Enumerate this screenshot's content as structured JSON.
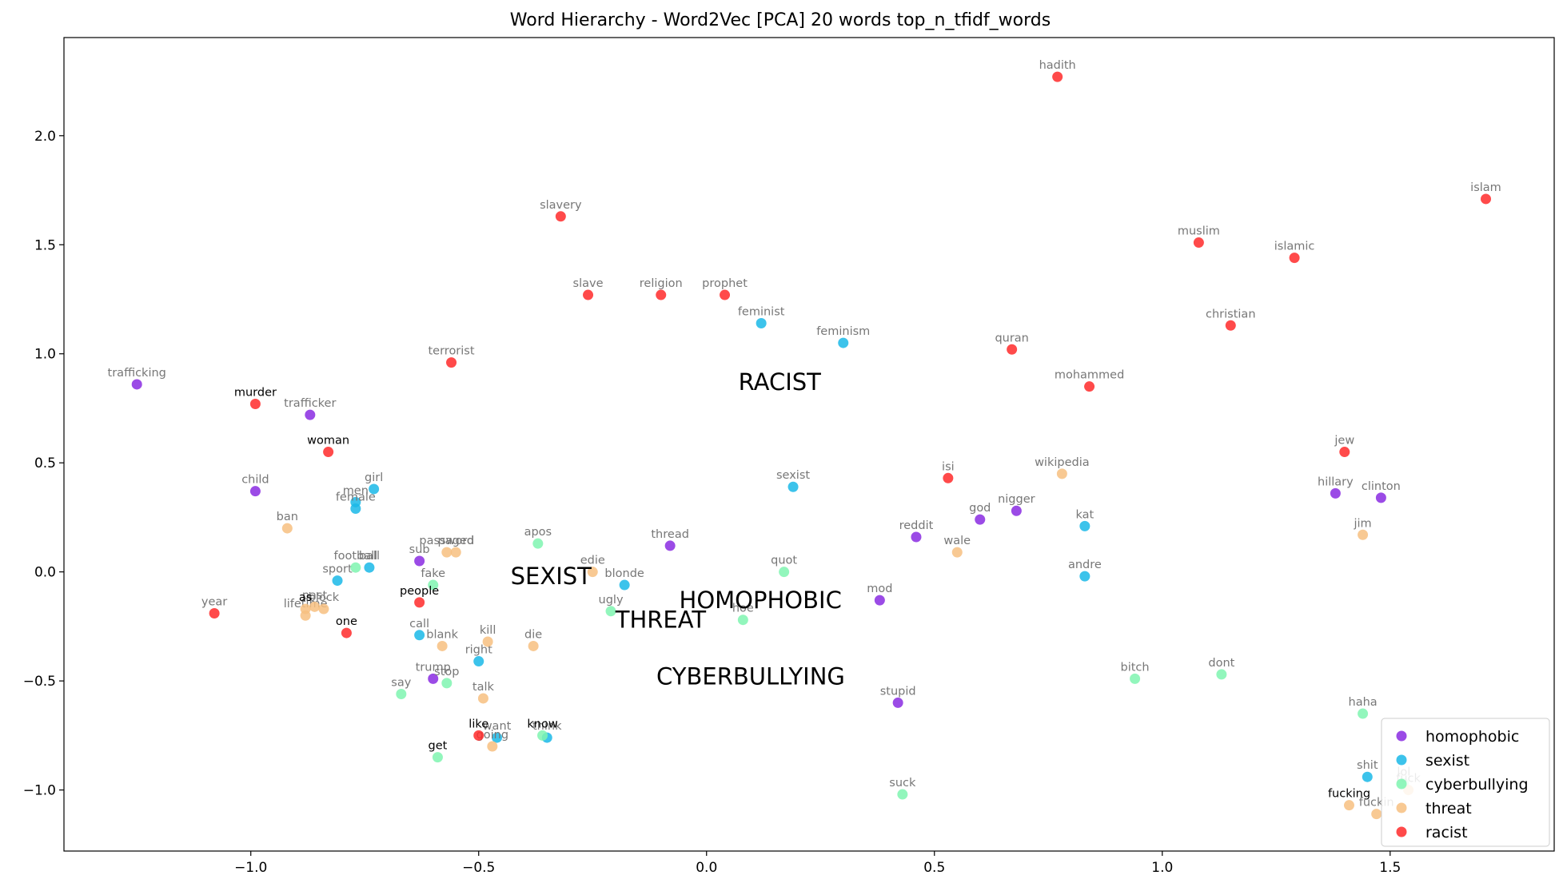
{
  "chart_data": {
    "type": "scatter",
    "title": "Word Hierarchy - Word2Vec [PCA] 20 words top_n_tfidf_words",
    "xlabel": "",
    "ylabel": "",
    "xlim": [
      -1.41,
      1.86
    ],
    "ylim": [
      -1.28,
      2.45
    ],
    "xticks": [
      "−1.0",
      "−0.5",
      "0.0",
      "0.5",
      "1.0",
      "1.5"
    ],
    "xtick_values": [
      -1.0,
      -0.5,
      0.0,
      0.5,
      1.0,
      1.5
    ],
    "yticks": [
      "−1.0",
      "−0.5",
      "0.0",
      "0.5",
      "1.0",
      "1.5",
      "2.0"
    ],
    "ytick_values": [
      -1.0,
      -0.5,
      0.0,
      0.5,
      1.0,
      1.5,
      2.0
    ],
    "grid": false,
    "legend_position": "lower-right",
    "series": [
      {
        "name": "homophobic",
        "color": "#8a2be2",
        "points": [
          {
            "label": "trafficking",
            "x": -1.25,
            "y": 0.86
          },
          {
            "label": "trafficker",
            "x": -0.87,
            "y": 0.72
          },
          {
            "label": "child",
            "x": -0.99,
            "y": 0.37
          },
          {
            "label": "sub",
            "x": -0.63,
            "y": 0.05
          },
          {
            "label": "thread",
            "x": -0.08,
            "y": 0.12
          },
          {
            "label": "reddit",
            "x": 0.46,
            "y": 0.16
          },
          {
            "label": "god",
            "x": 0.6,
            "y": 0.24
          },
          {
            "label": "nigger",
            "x": 0.68,
            "y": 0.28
          },
          {
            "label": "mod",
            "x": 0.38,
            "y": -0.13
          },
          {
            "label": "trump",
            "x": -0.6,
            "y": -0.49
          },
          {
            "label": "stupid",
            "x": 0.42,
            "y": -0.6
          },
          {
            "label": "hillary",
            "x": 1.38,
            "y": 0.36
          },
          {
            "label": "clinton",
            "x": 1.48,
            "y": 0.34
          }
        ]
      },
      {
        "name": "sexist",
        "color": "#1ab8e8",
        "points": [
          {
            "label": "feminist",
            "x": 0.12,
            "y": 1.14
          },
          {
            "label": "feminism",
            "x": 0.3,
            "y": 1.05
          },
          {
            "label": "girl",
            "x": -0.73,
            "y": 0.38
          },
          {
            "label": "men",
            "x": -0.77,
            "y": 0.32
          },
          {
            "label": "female",
            "x": -0.77,
            "y": 0.29
          },
          {
            "label": "sexist",
            "x": 0.19,
            "y": 0.39
          },
          {
            "label": "kat",
            "x": 0.83,
            "y": 0.21
          },
          {
            "label": "ball",
            "x": -0.74,
            "y": 0.02
          },
          {
            "label": "sport",
            "x": -0.81,
            "y": -0.04
          },
          {
            "label": "blonde",
            "x": -0.18,
            "y": -0.06
          },
          {
            "label": "andre",
            "x": 0.83,
            "y": -0.02
          },
          {
            "label": "call",
            "x": -0.63,
            "y": -0.29
          },
          {
            "label": "right",
            "x": -0.5,
            "y": -0.41
          },
          {
            "label": "want",
            "x": -0.46,
            "y": -0.76
          },
          {
            "label": "think",
            "x": -0.35,
            "y": -0.76
          },
          {
            "label": "shit",
            "x": 1.45,
            "y": -0.94
          }
        ]
      },
      {
        "name": "cyberbullying",
        "color": "#7ff5b0",
        "points": [
          {
            "label": "apos",
            "x": -0.37,
            "y": 0.13
          },
          {
            "label": "football",
            "x": -0.77,
            "y": 0.02
          },
          {
            "label": "fake",
            "x": -0.6,
            "y": -0.06
          },
          {
            "label": "quot",
            "x": 0.17,
            "y": 0.0
          },
          {
            "label": "ugly",
            "x": -0.21,
            "y": -0.18
          },
          {
            "label": "hoe",
            "x": 0.08,
            "y": -0.22
          },
          {
            "label": "stop",
            "x": -0.57,
            "y": -0.51
          },
          {
            "label": "say",
            "x": -0.67,
            "y": -0.56
          },
          {
            "label": "know",
            "x": -0.36,
            "y": -0.75
          },
          {
            "label": "get",
            "x": -0.59,
            "y": -0.85
          },
          {
            "label": "bitch",
            "x": 0.94,
            "y": -0.49
          },
          {
            "label": "dont",
            "x": 1.13,
            "y": -0.47
          },
          {
            "label": "haha",
            "x": 1.44,
            "y": -0.65
          },
          {
            "label": "suck",
            "x": 0.43,
            "y": -1.02
          },
          {
            "label": "lol",
            "x": 1.53,
            "y": -0.97
          }
        ]
      },
      {
        "name": "threat",
        "color": "#f7bf80",
        "points": [
          {
            "label": "ban",
            "x": -0.92,
            "y": 0.2
          },
          {
            "label": "password",
            "x": -0.57,
            "y": 0.09
          },
          {
            "label": "paged",
            "x": -0.55,
            "y": 0.09
          },
          {
            "label": "edie",
            "x": -0.25,
            "y": 0.0
          },
          {
            "label": "wikipedia",
            "x": 0.78,
            "y": 0.45
          },
          {
            "label": "wale",
            "x": 0.55,
            "y": 0.09
          },
          {
            "label": "jim",
            "x": 1.44,
            "y": 0.17
          },
          {
            "label": "lifetime",
            "x": -0.88,
            "y": -0.2
          },
          {
            "label": "past",
            "x": -0.86,
            "y": -0.16
          },
          {
            "label": "block",
            "x": -0.84,
            "y": -0.17
          },
          {
            "label": "as",
            "x": -0.88,
            "y": -0.17
          },
          {
            "label": "blank",
            "x": -0.58,
            "y": -0.34
          },
          {
            "label": "kill",
            "x": -0.48,
            "y": -0.32
          },
          {
            "label": "die",
            "x": -0.38,
            "y": -0.34
          },
          {
            "label": "talk",
            "x": -0.49,
            "y": -0.58
          },
          {
            "label": "going",
            "x": -0.47,
            "y": -0.8
          },
          {
            "label": "fucking",
            "x": 1.41,
            "y": -1.07
          },
          {
            "label": "fuckin",
            "x": 1.47,
            "y": -1.11
          },
          {
            "label": "fuck",
            "x": 1.54,
            "y": -1.0
          }
        ]
      },
      {
        "name": "racist",
        "color": "#ff2a2a",
        "points": [
          {
            "label": "hadith",
            "x": 0.77,
            "y": 2.27
          },
          {
            "label": "islam",
            "x": 1.71,
            "y": 1.71
          },
          {
            "label": "slavery",
            "x": -0.32,
            "y": 1.63
          },
          {
            "label": "muslim",
            "x": 1.08,
            "y": 1.51
          },
          {
            "label": "islamic",
            "x": 1.29,
            "y": 1.44
          },
          {
            "label": "slave",
            "x": -0.26,
            "y": 1.27
          },
          {
            "label": "religion",
            "x": -0.1,
            "y": 1.27
          },
          {
            "label": "prophet",
            "x": 0.04,
            "y": 1.27
          },
          {
            "label": "christian",
            "x": 1.15,
            "y": 1.13
          },
          {
            "label": "quran",
            "x": 0.67,
            "y": 1.02
          },
          {
            "label": "terrorist",
            "x": -0.56,
            "y": 0.96
          },
          {
            "label": "mohammed",
            "x": 0.84,
            "y": 0.85
          },
          {
            "label": "murder",
            "x": -0.99,
            "y": 0.77
          },
          {
            "label": "woman",
            "x": -0.83,
            "y": 0.55
          },
          {
            "label": "jew",
            "x": 1.4,
            "y": 0.55
          },
          {
            "label": "isi",
            "x": 0.53,
            "y": 0.43
          },
          {
            "label": "people",
            "x": -0.63,
            "y": -0.14
          },
          {
            "label": "year",
            "x": -1.08,
            "y": -0.19
          },
          {
            "label": "one",
            "x": -0.79,
            "y": -0.28
          },
          {
            "label": "like",
            "x": -0.5,
            "y": -0.75
          }
        ]
      }
    ],
    "category_labels": [
      {
        "text": "RACIST",
        "x": 0.07,
        "y": 0.87
      },
      {
        "text": "SEXIST",
        "x": -0.43,
        "y": -0.02
      },
      {
        "text": "HOMOPHOBIC",
        "x": -0.06,
        "y": -0.13
      },
      {
        "text": "THREAT",
        "x": -0.2,
        "y": -0.22
      },
      {
        "text": "CYBERBULLYING",
        "x": -0.11,
        "y": -0.48
      }
    ],
    "dark_labels": [
      "murder",
      "woman",
      "people",
      "as",
      "one",
      "like",
      "get",
      "know",
      "fucking"
    ]
  }
}
